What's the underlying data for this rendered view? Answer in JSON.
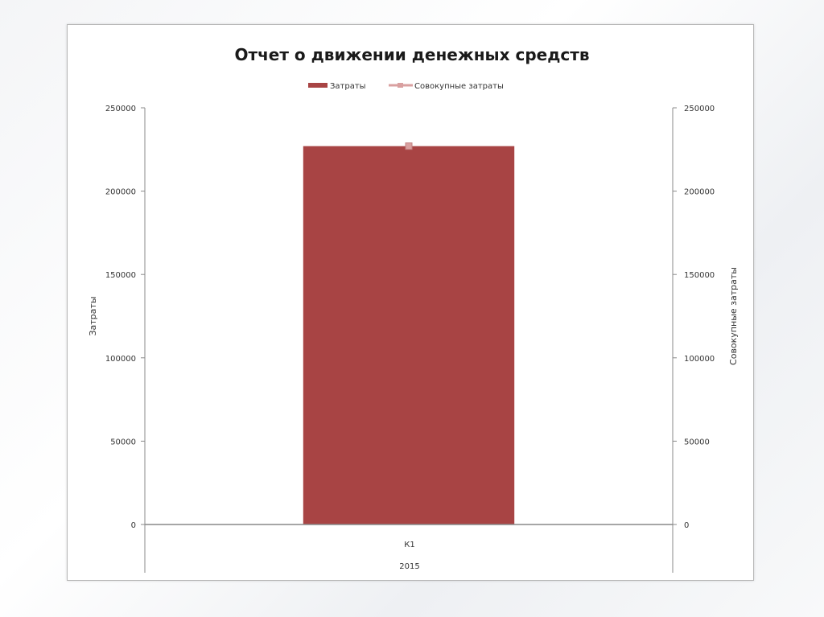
{
  "chart_data": {
    "type": "bar",
    "title": "Отчет о движении денежных средств",
    "categories": [
      "К1"
    ],
    "category_group": "2015",
    "series": [
      {
        "name": "Затраты",
        "kind": "bar",
        "axis": "left",
        "values": [
          227000
        ],
        "color": "#a84444"
      },
      {
        "name": "Совокупные затраты",
        "kind": "line",
        "axis": "right",
        "values": [
          227000
        ],
        "color": "#d9a0a0"
      }
    ],
    "ylabel": "Затраты",
    "y2label": "Совокупные затраты",
    "ylim": [
      0,
      250000
    ],
    "y2lim": [
      0,
      250000
    ],
    "yticks": [
      0,
      50000,
      100000,
      150000,
      200000,
      250000
    ],
    "legend": "top",
    "grid": false
  }
}
